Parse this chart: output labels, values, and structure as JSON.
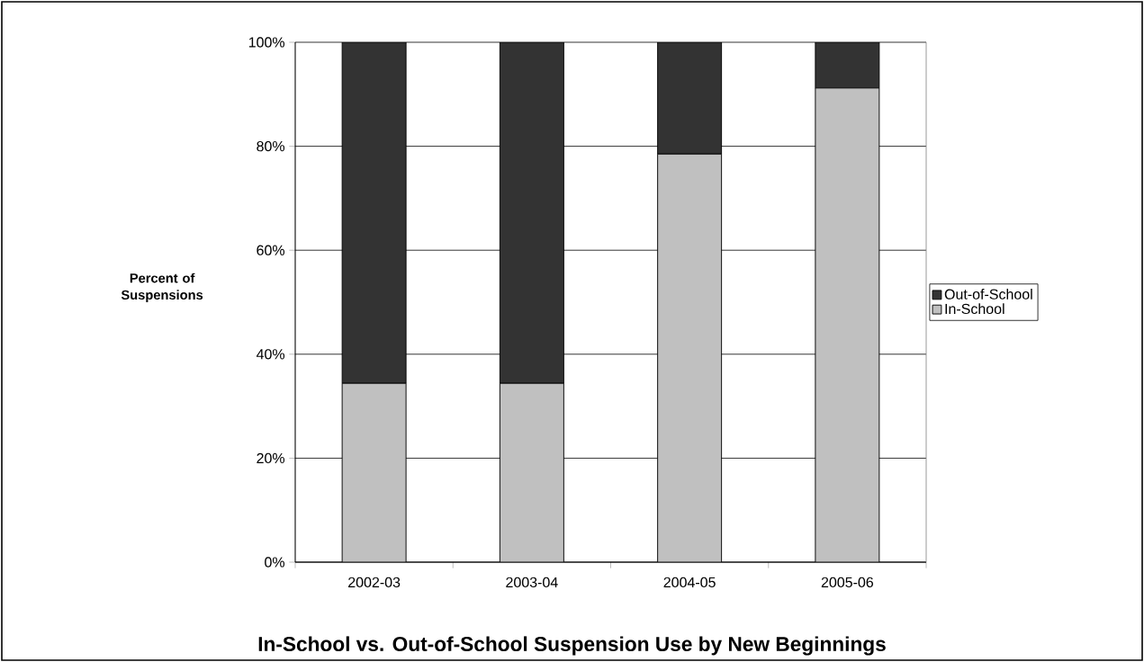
{
  "chart_data": {
    "type": "bar",
    "stacked": true,
    "title": "In-School vs. Out-of-School Suspension Use by New Beginnings",
    "ylabel": "Percent of Suspensions",
    "categories": [
      "2002-03",
      "2003-04",
      "2004-05",
      "2005-06"
    ],
    "series": [
      {
        "name": "In-School",
        "color": "#c0c0c0",
        "values": [
          34.4,
          34.4,
          78.5,
          91.2
        ]
      },
      {
        "name": "Out-of-School",
        "color": "#333333",
        "values": [
          65.6,
          65.6,
          21.5,
          8.8
        ]
      }
    ],
    "ylim": [
      0,
      100
    ],
    "yticks": [
      {
        "value": 0,
        "label": "0%"
      },
      {
        "value": 20,
        "label": "20%"
      },
      {
        "value": 40,
        "label": "40%"
      },
      {
        "value": 60,
        "label": "60%"
      },
      {
        "value": 80,
        "label": "80%"
      },
      {
        "value": 100,
        "label": "100%"
      }
    ],
    "grid": "y",
    "legend": "right"
  }
}
